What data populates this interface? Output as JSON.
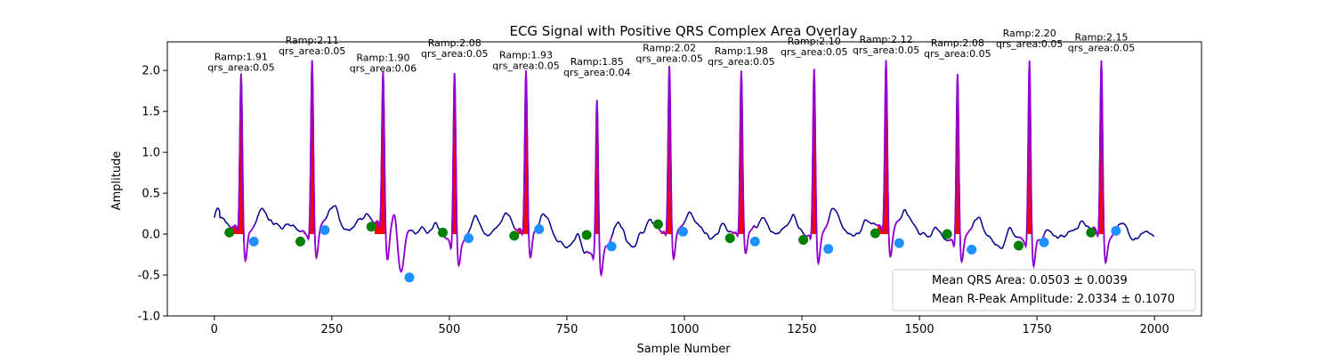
{
  "chart_data": {
    "type": "line",
    "title": "ECG Signal with Positive QRS Complex Area Overlay",
    "xlabel": "Sample Number",
    "ylabel": "Amplitude",
    "xlim": [
      -100,
      2100
    ],
    "ylim": [
      -1.0,
      2.35
    ],
    "xticks": [
      0,
      250,
      500,
      750,
      1000,
      1250,
      1500,
      1750,
      2000
    ],
    "yticks": [
      -1.0,
      -0.5,
      0.0,
      0.5,
      1.0,
      1.5,
      2.0
    ],
    "grid": false,
    "colors": {
      "signal": "#00008b",
      "qrs_segment": "#9400d3",
      "qrs_area": "#ff0000",
      "onset_marker": "#008000",
      "offset_marker": "#1e90ff"
    },
    "beats": [
      {
        "r_peak": 57,
        "r_amp": 1.91,
        "qrs_area": 0.05,
        "ramp_label": "Ramp:1.91",
        "area_label": "qrs_area:0.05",
        "onset": [
          32,
          0.02
        ],
        "offset": [
          84,
          -0.09
        ]
      },
      {
        "r_peak": 208,
        "r_amp": 2.11,
        "qrs_area": 0.05,
        "ramp_label": "Ramp:2.11",
        "area_label": "qrs_area:0.05",
        "onset": [
          183,
          -0.09
        ],
        "offset": [
          235,
          0.05
        ]
      },
      {
        "r_peak": 359,
        "r_amp": 1.9,
        "qrs_area": 0.06,
        "ramp_label": "Ramp:1.90",
        "area_label": "qrs_area:0.06",
        "onset": [
          334,
          0.09
        ],
        "offset": [
          415,
          -0.53
        ]
      },
      {
        "r_peak": 511,
        "r_amp": 2.08,
        "qrs_area": 0.05,
        "ramp_label": "Ramp:2.08",
        "area_label": "qrs_area:0.05",
        "onset": [
          486,
          0.02
        ],
        "offset": [
          541,
          -0.05
        ]
      },
      {
        "r_peak": 663,
        "r_amp": 1.93,
        "qrs_area": 0.05,
        "ramp_label": "Ramp:1.93",
        "area_label": "qrs_area:0.05",
        "onset": [
          638,
          -0.02
        ],
        "offset": [
          691,
          0.06
        ]
      },
      {
        "r_peak": 814,
        "r_amp": 1.85,
        "qrs_area": 0.04,
        "ramp_label": "Ramp:1.85",
        "area_label": "qrs_area:0.04",
        "onset": [
          792,
          -0.01
        ],
        "offset": [
          845,
          -0.15
        ]
      },
      {
        "r_peak": 968,
        "r_amp": 2.02,
        "qrs_area": 0.05,
        "ramp_label": "Ramp:2.02",
        "area_label": "qrs_area:0.05",
        "onset": [
          944,
          0.12
        ],
        "offset": [
          997,
          0.03
        ]
      },
      {
        "r_peak": 1121,
        "r_amp": 1.98,
        "qrs_area": 0.05,
        "ramp_label": "Ramp:1.98",
        "area_label": "qrs_area:0.05",
        "onset": [
          1097,
          -0.05
        ],
        "offset": [
          1150,
          -0.09
        ]
      },
      {
        "r_peak": 1276,
        "r_amp": 2.1,
        "qrs_area": 0.05,
        "ramp_label": "Ramp:2.10",
        "area_label": "qrs_area:0.05",
        "onset": [
          1253,
          -0.07
        ],
        "offset": [
          1306,
          -0.18
        ]
      },
      {
        "r_peak": 1429,
        "r_amp": 2.12,
        "qrs_area": 0.05,
        "ramp_label": "Ramp:2.12",
        "area_label": "qrs_area:0.05",
        "onset": [
          1406,
          0.01
        ],
        "offset": [
          1457,
          -0.11
        ]
      },
      {
        "r_peak": 1581,
        "r_amp": 2.08,
        "qrs_area": 0.05,
        "ramp_label": "Ramp:2.08",
        "area_label": "qrs_area:0.05",
        "onset": [
          1559,
          0.0
        ],
        "offset": [
          1611,
          -0.19
        ]
      },
      {
        "r_peak": 1734,
        "r_amp": 2.2,
        "qrs_area": 0.05,
        "ramp_label": "Ramp:2.20",
        "area_label": "qrs_area:0.05",
        "onset": [
          1711,
          -0.14
        ],
        "offset": [
          1765,
          -0.1
        ]
      },
      {
        "r_peak": 1887,
        "r_amp": 2.15,
        "qrs_area": 0.05,
        "ramp_label": "Ramp:2.15",
        "area_label": "qrs_area:0.05",
        "onset": [
          1865,
          0.02
        ],
        "offset": [
          1918,
          0.04
        ]
      }
    ],
    "legend": {
      "placement": "lower right",
      "entries": [
        "Mean QRS Area: 0.0503 ± 0.0039",
        "Mean R-Peak Amplitude: 2.0334 ± 0.1070"
      ]
    }
  }
}
